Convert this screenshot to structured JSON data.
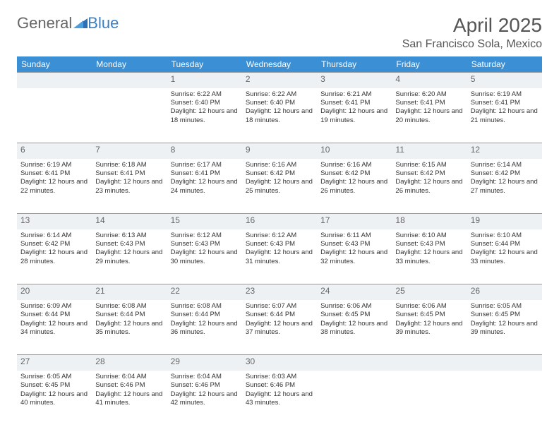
{
  "logo": {
    "text1": "General",
    "text2": "Blue"
  },
  "title": "April 2025",
  "location": "San Francisco Sola, Mexico",
  "colors": {
    "header_bg": "#3b8fd4",
    "header_text": "#ffffff",
    "daynum_bg": "#eef1f4",
    "border": "#999999",
    "text": "#333333",
    "logo_blue": "#2b6fb4"
  },
  "dayHeaders": [
    "Sunday",
    "Monday",
    "Tuesday",
    "Wednesday",
    "Thursday",
    "Friday",
    "Saturday"
  ],
  "weeks": [
    [
      null,
      null,
      {
        "n": "1",
        "sr": "6:22 AM",
        "ss": "6:40 PM",
        "dl": "12 hours and 18 minutes."
      },
      {
        "n": "2",
        "sr": "6:22 AM",
        "ss": "6:40 PM",
        "dl": "12 hours and 18 minutes."
      },
      {
        "n": "3",
        "sr": "6:21 AM",
        "ss": "6:41 PM",
        "dl": "12 hours and 19 minutes."
      },
      {
        "n": "4",
        "sr": "6:20 AM",
        "ss": "6:41 PM",
        "dl": "12 hours and 20 minutes."
      },
      {
        "n": "5",
        "sr": "6:19 AM",
        "ss": "6:41 PM",
        "dl": "12 hours and 21 minutes."
      }
    ],
    [
      {
        "n": "6",
        "sr": "6:19 AM",
        "ss": "6:41 PM",
        "dl": "12 hours and 22 minutes."
      },
      {
        "n": "7",
        "sr": "6:18 AM",
        "ss": "6:41 PM",
        "dl": "12 hours and 23 minutes."
      },
      {
        "n": "8",
        "sr": "6:17 AM",
        "ss": "6:41 PM",
        "dl": "12 hours and 24 minutes."
      },
      {
        "n": "9",
        "sr": "6:16 AM",
        "ss": "6:42 PM",
        "dl": "12 hours and 25 minutes."
      },
      {
        "n": "10",
        "sr": "6:16 AM",
        "ss": "6:42 PM",
        "dl": "12 hours and 26 minutes."
      },
      {
        "n": "11",
        "sr": "6:15 AM",
        "ss": "6:42 PM",
        "dl": "12 hours and 26 minutes."
      },
      {
        "n": "12",
        "sr": "6:14 AM",
        "ss": "6:42 PM",
        "dl": "12 hours and 27 minutes."
      }
    ],
    [
      {
        "n": "13",
        "sr": "6:14 AM",
        "ss": "6:42 PM",
        "dl": "12 hours and 28 minutes."
      },
      {
        "n": "14",
        "sr": "6:13 AM",
        "ss": "6:43 PM",
        "dl": "12 hours and 29 minutes."
      },
      {
        "n": "15",
        "sr": "6:12 AM",
        "ss": "6:43 PM",
        "dl": "12 hours and 30 minutes."
      },
      {
        "n": "16",
        "sr": "6:12 AM",
        "ss": "6:43 PM",
        "dl": "12 hours and 31 minutes."
      },
      {
        "n": "17",
        "sr": "6:11 AM",
        "ss": "6:43 PM",
        "dl": "12 hours and 32 minutes."
      },
      {
        "n": "18",
        "sr": "6:10 AM",
        "ss": "6:43 PM",
        "dl": "12 hours and 33 minutes."
      },
      {
        "n": "19",
        "sr": "6:10 AM",
        "ss": "6:44 PM",
        "dl": "12 hours and 33 minutes."
      }
    ],
    [
      {
        "n": "20",
        "sr": "6:09 AM",
        "ss": "6:44 PM",
        "dl": "12 hours and 34 minutes."
      },
      {
        "n": "21",
        "sr": "6:08 AM",
        "ss": "6:44 PM",
        "dl": "12 hours and 35 minutes."
      },
      {
        "n": "22",
        "sr": "6:08 AM",
        "ss": "6:44 PM",
        "dl": "12 hours and 36 minutes."
      },
      {
        "n": "23",
        "sr": "6:07 AM",
        "ss": "6:44 PM",
        "dl": "12 hours and 37 minutes."
      },
      {
        "n": "24",
        "sr": "6:06 AM",
        "ss": "6:45 PM",
        "dl": "12 hours and 38 minutes."
      },
      {
        "n": "25",
        "sr": "6:06 AM",
        "ss": "6:45 PM",
        "dl": "12 hours and 39 minutes."
      },
      {
        "n": "26",
        "sr": "6:05 AM",
        "ss": "6:45 PM",
        "dl": "12 hours and 39 minutes."
      }
    ],
    [
      {
        "n": "27",
        "sr": "6:05 AM",
        "ss": "6:45 PM",
        "dl": "12 hours and 40 minutes."
      },
      {
        "n": "28",
        "sr": "6:04 AM",
        "ss": "6:46 PM",
        "dl": "12 hours and 41 minutes."
      },
      {
        "n": "29",
        "sr": "6:04 AM",
        "ss": "6:46 PM",
        "dl": "12 hours and 42 minutes."
      },
      {
        "n": "30",
        "sr": "6:03 AM",
        "ss": "6:46 PM",
        "dl": "12 hours and 43 minutes."
      },
      null,
      null,
      null
    ]
  ],
  "labels": {
    "sunrise": "Sunrise:",
    "sunset": "Sunset:",
    "daylight": "Daylight:"
  }
}
